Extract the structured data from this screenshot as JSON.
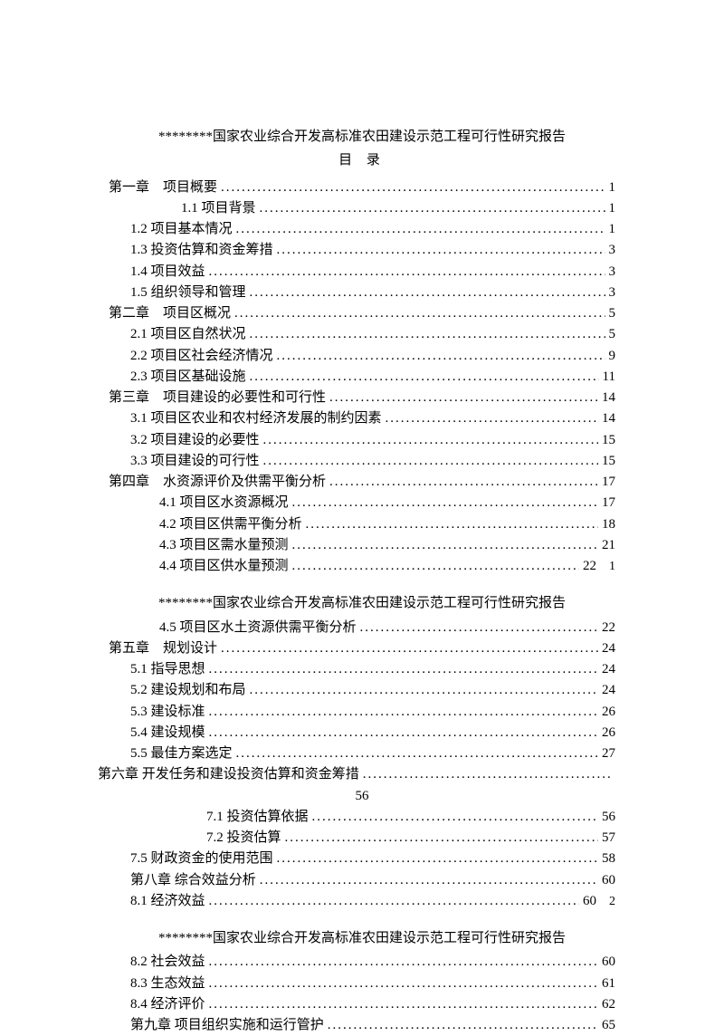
{
  "report_title": "********国家农业综合开发高标准农田建设示范工程可行性研究报告",
  "toc_heading": "目 录",
  "dots": ".....................................................................................................................................................................",
  "entries": [
    {
      "type": "title"
    },
    {
      "type": "heading"
    },
    {
      "label": "第一章　项目概要",
      "page": "1",
      "indent": "indent-0"
    },
    {
      "label": "1.1 项目背景",
      "page": "1",
      "indent": "indent-2"
    },
    {
      "label": "1.2 项目基本情况",
      "page": "1",
      "indent": "indent-1"
    },
    {
      "label": "1.3 投资估算和资金筹措",
      "page": "3",
      "indent": "indent-1"
    },
    {
      "label": "1.4 项目效益",
      "page": "3",
      "indent": "indent-1"
    },
    {
      "label": "1.5 组织领导和管理",
      "page": "3",
      "indent": "indent-1"
    },
    {
      "label": "第二章　项目区概况",
      "page": "5",
      "indent": "indent-0"
    },
    {
      "label": "2.1 项目区自然状况",
      "page": "5",
      "indent": "indent-1"
    },
    {
      "label": "2.2 项目区社会经济情况",
      "page": "9",
      "indent": "indent-1"
    },
    {
      "label": "2.3 项目区基础设施",
      "page": "11",
      "indent": "indent-1"
    },
    {
      "label": "第三章　项目建设的必要性和可行性",
      "page": "14",
      "indent": "indent-0"
    },
    {
      "label": "3.1 项目区农业和农村经济发展的制约因素",
      "page": "14",
      "indent": "indent-1"
    },
    {
      "label": "3.2 项目建设的必要性",
      "page": "15",
      "indent": "indent-1"
    },
    {
      "label": "3.3 项目建设的可行性",
      "page": "15",
      "indent": "indent-1"
    },
    {
      "label": "第四章　水资源评价及供需平衡分析",
      "page": "17",
      "indent": "indent-0"
    },
    {
      "label": "4.1 项目区水资源概况",
      "page": "17",
      "indent": "indent-s"
    },
    {
      "label": "4.2 项目区供需平衡分析",
      "page": "18",
      "indent": "indent-s"
    },
    {
      "label": "4.3 项目区需水量预测",
      "page": "21",
      "indent": "indent-s"
    },
    {
      "label": "4.4 项目区供水量预测",
      "page": "22",
      "indent": "indent-s",
      "trailing": "1"
    },
    {
      "type": "break"
    },
    {
      "type": "title"
    },
    {
      "label": "4.5 项目区水土资源供需平衡分析",
      "page": "22",
      "indent": "indent-s"
    },
    {
      "label": "第五章　规划设计",
      "page": "24",
      "indent": "indent-0"
    },
    {
      "label": "5.1 指导思想",
      "page": "24",
      "indent": "indent-1"
    },
    {
      "label": "5.2 建设规划和布局",
      "page": "24",
      "indent": "indent-1"
    },
    {
      "label": "5.3 建设标准",
      "page": "26",
      "indent": "indent-1"
    },
    {
      "label": "5.4 建设规模",
      "page": "26",
      "indent": "indent-1"
    },
    {
      "label": "5.5 最佳方案选定",
      "page": "27",
      "indent": "indent-1"
    },
    {
      "label": "第六章 开发任务和建设投资估算和资金筹措",
      "page": "",
      "indent": "indent-0",
      "style": "margin-left:-12px;"
    },
    {
      "type": "plain",
      "text": "56"
    },
    {
      "label": "7.1 投资估算依据",
      "page": "56",
      "indent": "indent-3"
    },
    {
      "label": "7.2 投资估算",
      "page": "57",
      "indent": "indent-3"
    },
    {
      "label": "7.5 财政资金的使用范围",
      "page": "58",
      "indent": "indent-1"
    },
    {
      "label": "第八章 综合效益分析",
      "page": "60",
      "indent": "indent-1"
    },
    {
      "label": "8.1 经济效益",
      "page": "60",
      "indent": "indent-1",
      "trailing": "2"
    },
    {
      "type": "break"
    },
    {
      "type": "title"
    },
    {
      "label": "8.2 社会效益",
      "page": "60",
      "indent": "indent-1"
    },
    {
      "label": "8.3 生态效益",
      "page": "61",
      "indent": "indent-1"
    },
    {
      "label": "8.4 经济评价",
      "page": "62",
      "indent": "indent-1"
    },
    {
      "label": "第九章 项目组织实施和运行管护",
      "page": "65",
      "indent": "indent-1"
    }
  ]
}
